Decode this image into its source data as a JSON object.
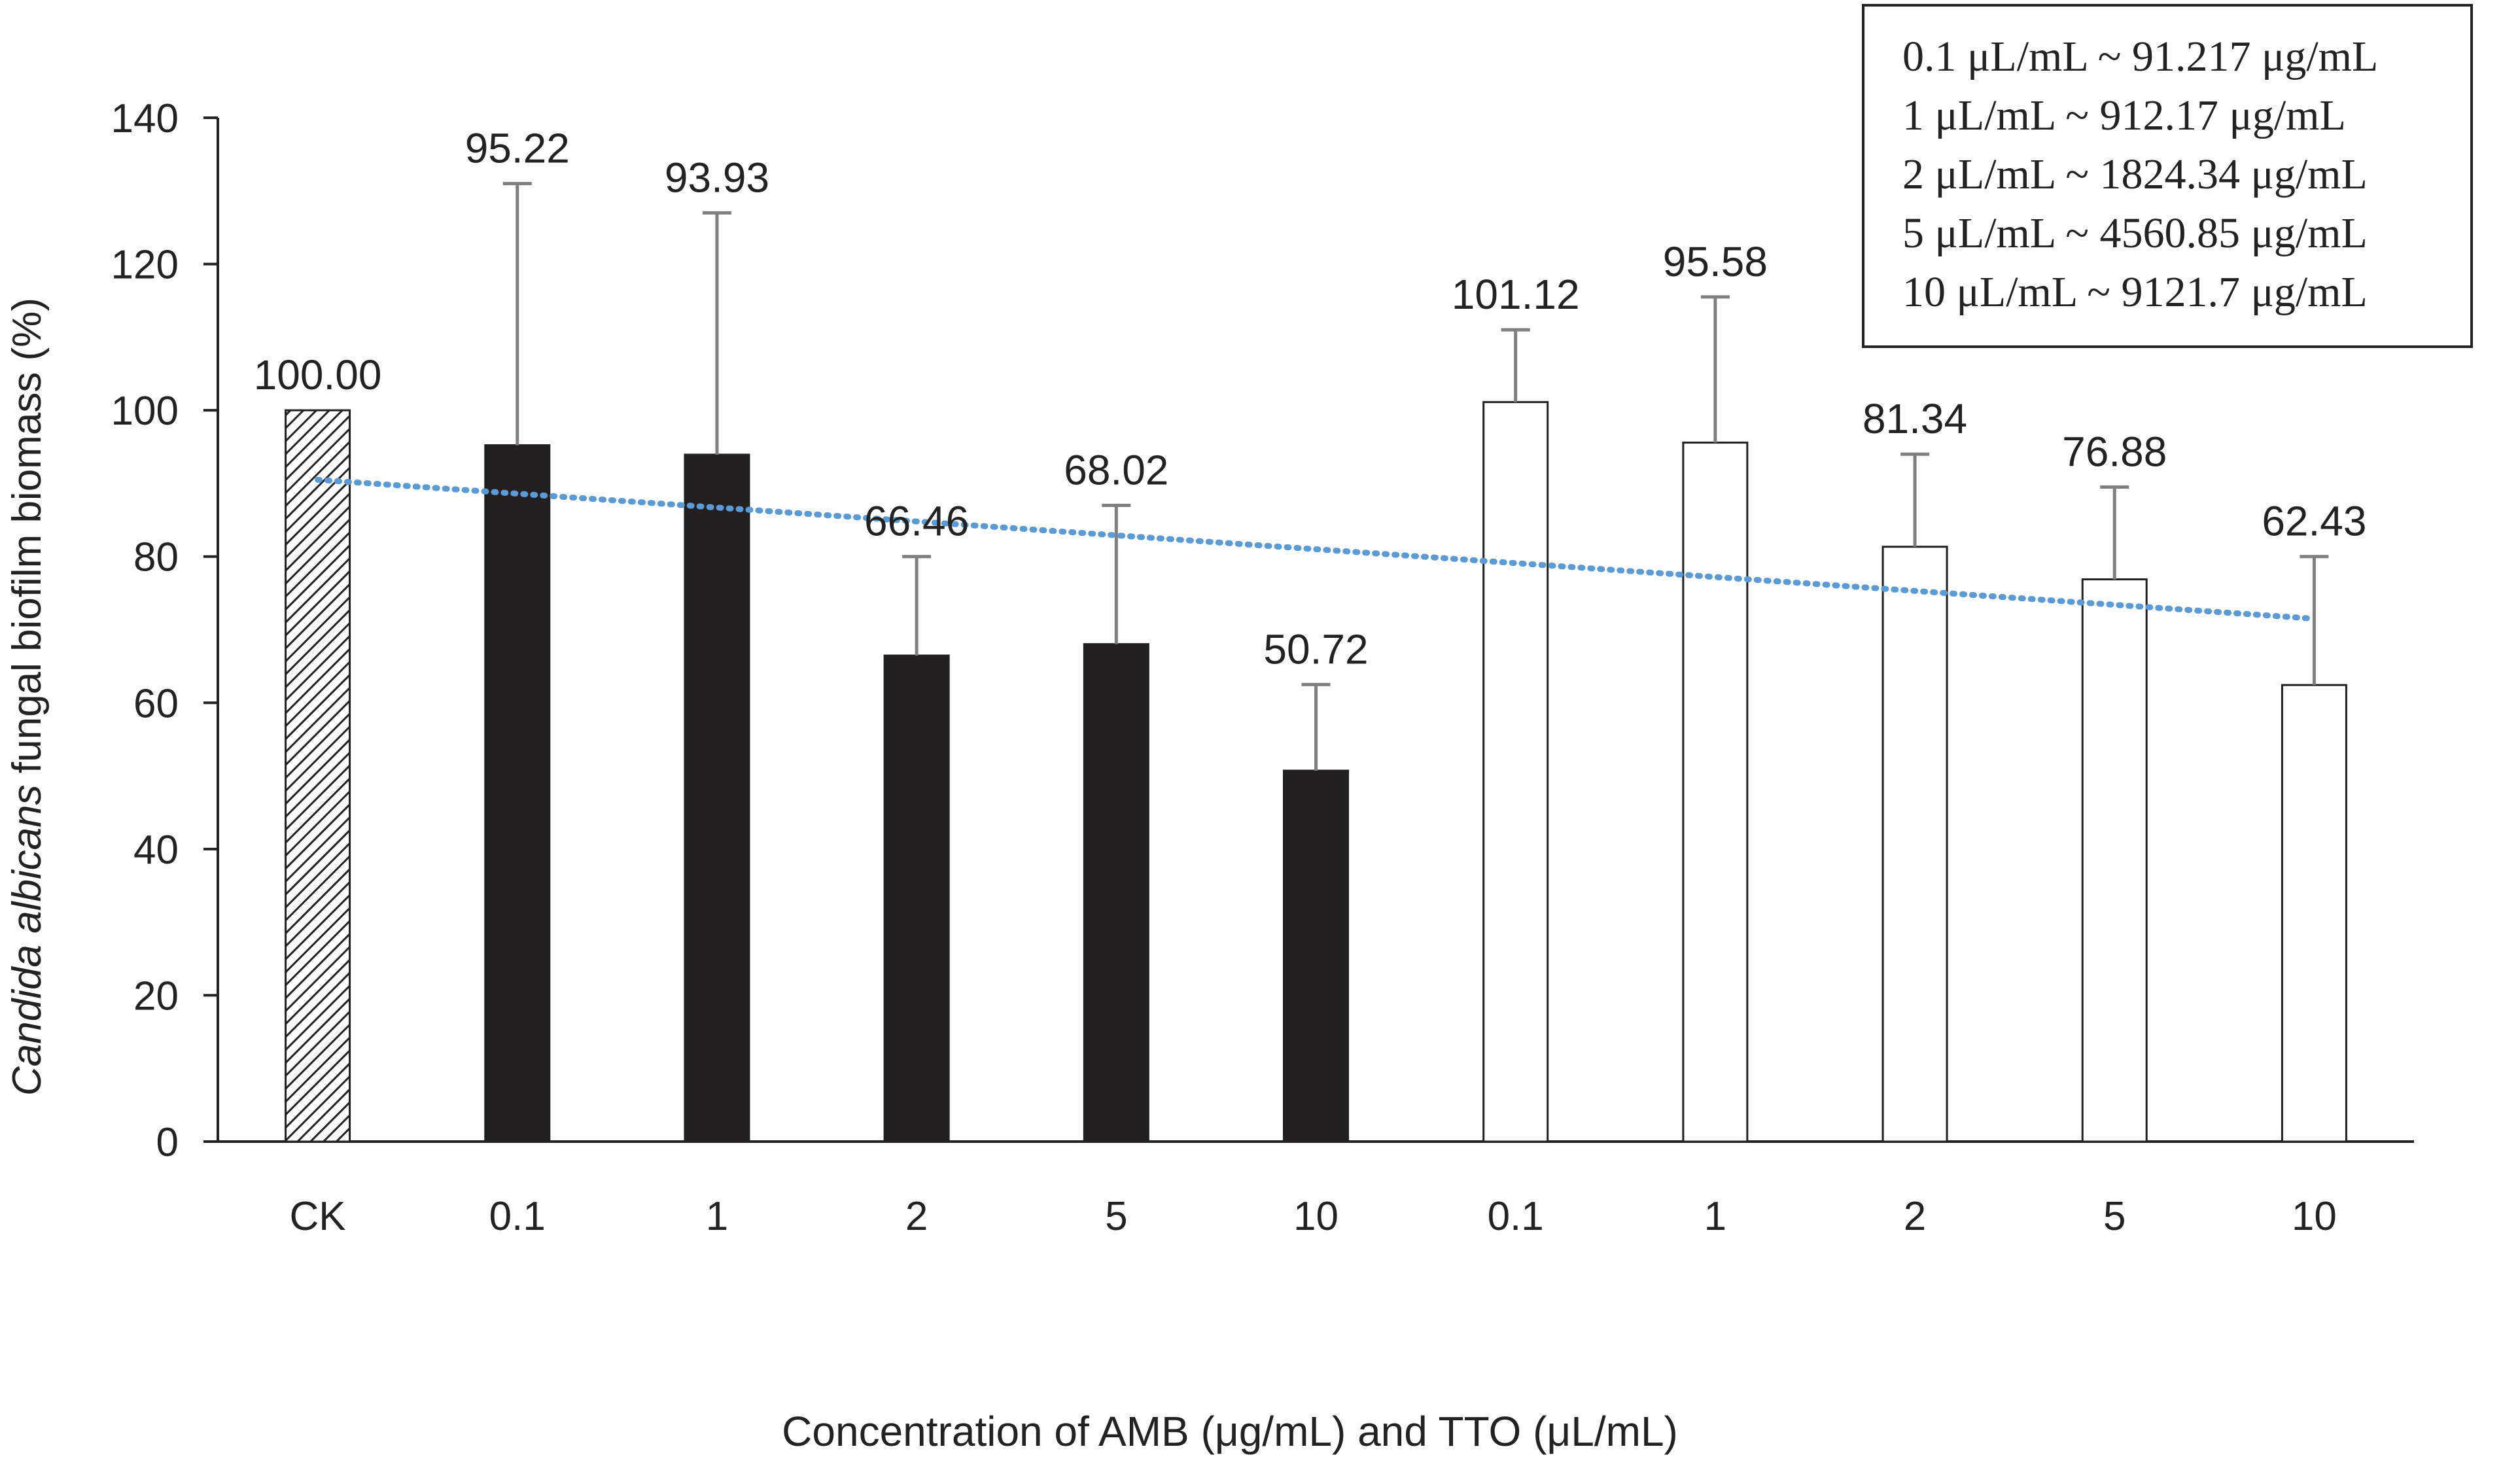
{
  "chart_data": {
    "type": "bar",
    "title": "",
    "xlabel": "Concentration of AMB (μg/mL) and TTO (μL/mL)",
    "ylabel_italic": "Candida albicans",
    "ylabel_rest": " fungal biofilm biomass (%)",
    "ylim": [
      0,
      140
    ],
    "yticks": [
      0,
      20,
      40,
      60,
      80,
      100,
      120,
      140
    ],
    "categories": [
      "CK",
      "0.1",
      "1",
      "2",
      "5",
      "10",
      "0.1",
      "1",
      "2",
      "5",
      "10"
    ],
    "groups": [
      "control",
      "AMB",
      "AMB",
      "AMB",
      "AMB",
      "AMB",
      "TTO",
      "TTO",
      "TTO",
      "TTO",
      "TTO"
    ],
    "values": [
      100.0,
      95.22,
      93.93,
      66.46,
      68.02,
      50.72,
      101.12,
      95.58,
      81.34,
      76.88,
      62.43
    ],
    "value_labels": [
      "100.00",
      "95.22",
      "93.93",
      "66.46",
      "68.02",
      "50.72",
      "101.12",
      "95.58",
      "81.34",
      "76.88",
      "62.43"
    ],
    "error_upper": [
      null,
      131,
      127,
      80,
      87,
      62.5,
      111,
      115.5,
      94,
      89.5,
      80
    ],
    "trendline": {
      "style": "dotted",
      "start": 90.5,
      "end": 71.5
    },
    "colors": {
      "control_pattern": "#222222",
      "AMB": "#231f20",
      "TTO": "#ffffff",
      "bar_stroke": "#231f20",
      "error": "#7f7f7f",
      "trend": "#5b9bd5",
      "axis": "#222222"
    },
    "legend_lines": [
      "0.1 μL/mL ~ 91.217 μg/mL",
      "1 μL/mL ~ 912.17 μg/mL",
      "2 μL/mL ~ 1824.34 μg/mL",
      "5 μL/mL ~ 4560.85 μg/mL",
      "10 μL/mL ~ 9121.7 μg/mL"
    ],
    "legend_position": "top-right"
  }
}
